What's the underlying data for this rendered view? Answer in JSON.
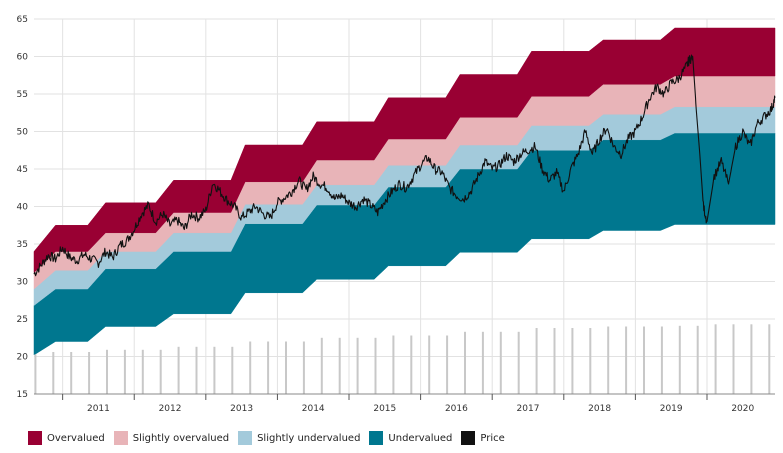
{
  "chart_data": {
    "type": "area",
    "y_range": [
      15,
      65
    ],
    "y_ticks": [
      "15",
      "20",
      "25",
      "30",
      "35",
      "40",
      "45",
      "50",
      "55",
      "60",
      "65"
    ],
    "x_range": [
      2010.6,
      2020.95
    ],
    "x_labels": [
      "2011",
      "2012",
      "2013",
      "2014",
      "2015",
      "2016",
      "2017",
      "2018",
      "2019",
      "2020"
    ],
    "grid": true,
    "legend_placement": "bottom-left",
    "colors": {
      "overvalued": "#990033",
      "slightly_overvalued": "#e8b4b8",
      "slightly_undervalued": "#a3cadb",
      "undervalued": "#00778f",
      "price": "#111111",
      "bars": "#c8c8c8",
      "grid": "#e2e2e2"
    },
    "series_names": {
      "overvalued": "Overvalued",
      "slightly_overvalued": "Slightly overvalued",
      "slightly_undervalued": "Slightly undervalued",
      "undervalued": "Undervalued",
      "price": "Price"
    },
    "valuation_steps": [
      {
        "start": 2010.6,
        "end": 2011.35,
        "b1": 22.0,
        "b2": 29.0,
        "b3": 31.5,
        "b4": 34.0,
        "b5": 37.5
      },
      {
        "start": 2011.6,
        "end": 2012.3,
        "b1": 24.0,
        "b2": 31.7,
        "b3": 34.0,
        "b4": 36.5,
        "b5": 40.5
      },
      {
        "start": 2012.55,
        "end": 2013.35,
        "b1": 25.7,
        "b2": 34.0,
        "b3": 36.5,
        "b4": 39.2,
        "b5": 43.5
      },
      {
        "start": 2013.55,
        "end": 2014.35,
        "b1": 28.5,
        "b2": 37.7,
        "b3": 40.3,
        "b4": 43.3,
        "b5": 48.2
      },
      {
        "start": 2014.55,
        "end": 2015.35,
        "b1": 30.3,
        "b2": 40.2,
        "b3": 42.9,
        "b4": 46.2,
        "b5": 51.3
      },
      {
        "start": 2015.55,
        "end": 2016.35,
        "b1": 32.1,
        "b2": 42.6,
        "b3": 45.5,
        "b4": 49.0,
        "b5": 54.5
      },
      {
        "start": 2016.55,
        "end": 2017.35,
        "b1": 33.9,
        "b2": 45.0,
        "b3": 48.2,
        "b4": 51.9,
        "b5": 57.6
      },
      {
        "start": 2017.55,
        "end": 2018.35,
        "b1": 35.7,
        "b2": 47.5,
        "b3": 50.8,
        "b4": 54.7,
        "b5": 60.7
      },
      {
        "start": 2018.55,
        "end": 2019.35,
        "b1": 36.8,
        "b2": 48.9,
        "b3": 52.3,
        "b4": 56.3,
        "b5": 62.2
      },
      {
        "start": 2019.55,
        "end": 2020.95,
        "b1": 37.6,
        "b2": 49.8,
        "b3": 53.3,
        "b4": 57.4,
        "b5": 63.8
      }
    ],
    "start_bands": {
      "x": 2010.6,
      "b1": 20.2,
      "b2": 26.8,
      "b3": 29.0,
      "b4": 31.2,
      "b5": 34.0
    },
    "bars": {
      "x": [
        2010.62,
        2010.87,
        2011.12,
        2011.37,
        2011.62,
        2011.87,
        2012.12,
        2012.37,
        2012.62,
        2012.87,
        2013.12,
        2013.37,
        2013.62,
        2013.87,
        2014.12,
        2014.37,
        2014.62,
        2014.87,
        2015.12,
        2015.37,
        2015.62,
        2015.87,
        2016.12,
        2016.37,
        2016.62,
        2016.87,
        2017.12,
        2017.37,
        2017.62,
        2017.87,
        2018.12,
        2018.37,
        2018.62,
        2018.87,
        2019.12,
        2019.37,
        2019.62,
        2019.87,
        2020.12,
        2020.37,
        2020.62,
        2020.87
      ],
      "values": [
        20.3,
        20.6,
        20.6,
        20.6,
        20.9,
        20.9,
        20.9,
        20.9,
        21.3,
        21.3,
        21.3,
        21.3,
        22.0,
        22.0,
        22.0,
        22.0,
        22.5,
        22.5,
        22.5,
        22.5,
        22.8,
        22.8,
        22.8,
        22.8,
        23.3,
        23.3,
        23.3,
        23.3,
        23.8,
        23.8,
        23.8,
        23.8,
        24.0,
        24.0,
        24.0,
        24.0,
        24.1,
        24.1,
        24.3,
        24.3,
        24.3,
        24.3
      ]
    },
    "price": {
      "x": [
        2010.6,
        2010.7,
        2010.8,
        2010.9,
        2011.0,
        2011.1,
        2011.2,
        2011.3,
        2011.4,
        2011.5,
        2011.6,
        2011.7,
        2011.8,
        2011.9,
        2012.0,
        2012.1,
        2012.2,
        2012.3,
        2012.4,
        2012.5,
        2012.6,
        2012.7,
        2012.8,
        2012.9,
        2013.0,
        2013.1,
        2013.2,
        2013.3,
        2013.4,
        2013.5,
        2013.6,
        2013.7,
        2013.8,
        2013.9,
        2014.0,
        2014.1,
        2014.2,
        2014.3,
        2014.4,
        2014.5,
        2014.6,
        2014.7,
        2014.8,
        2014.9,
        2015.0,
        2015.1,
        2015.2,
        2015.3,
        2015.4,
        2015.5,
        2015.6,
        2015.7,
        2015.8,
        2015.9,
        2016.0,
        2016.1,
        2016.2,
        2016.3,
        2016.4,
        2016.5,
        2016.6,
        2016.7,
        2016.8,
        2016.9,
        2017.0,
        2017.1,
        2017.2,
        2017.3,
        2017.4,
        2017.5,
        2017.6,
        2017.7,
        2017.8,
        2017.9,
        2018.0,
        2018.1,
        2018.2,
        2018.3,
        2018.4,
        2018.5,
        2018.6,
        2018.7,
        2018.8,
        2018.9,
        2019.0,
        2019.1,
        2019.2,
        2019.3,
        2019.4,
        2019.5,
        2019.6,
        2019.7,
        2019.75,
        2019.8,
        2019.85,
        2019.9,
        2019.95,
        2020.0,
        2020.1,
        2020.2,
        2020.3,
        2020.4,
        2020.5,
        2020.6,
        2020.7,
        2020.8,
        2020.9,
        2020.95
      ],
      "y": [
        31.0,
        32.2,
        33.5,
        33.0,
        34.5,
        33.2,
        32.8,
        33.6,
        33.0,
        32.5,
        34.0,
        33.2,
        34.8,
        35.5,
        37.0,
        39.0,
        40.2,
        38.0,
        39.0,
        37.5,
        38.2,
        37.0,
        39.0,
        38.5,
        39.5,
        43.2,
        42.0,
        40.8,
        40.0,
        38.5,
        39.3,
        40.0,
        39.0,
        38.5,
        40.5,
        41.2,
        42.0,
        43.5,
        42.2,
        44.0,
        43.0,
        42.5,
        41.0,
        41.5,
        40.5,
        40.0,
        41.0,
        40.2,
        39.2,
        40.8,
        42.0,
        43.0,
        42.5,
        44.0,
        45.5,
        46.5,
        45.0,
        44.5,
        42.5,
        41.5,
        41.0,
        42.0,
        44.0,
        46.0,
        45.0,
        45.5,
        46.8,
        46.0,
        47.0,
        47.5,
        48.0,
        45.0,
        43.5,
        44.5,
        42.0,
        45.0,
        47.0,
        50.0,
        47.0,
        49.0,
        50.5,
        48.0,
        47.0,
        49.0,
        50.0,
        52.0,
        54.5,
        56.0,
        55.0,
        56.5,
        57.0,
        58.5,
        59.5,
        60.0,
        53.0,
        47.0,
        40.0,
        38.0,
        44.0,
        46.0,
        43.0,
        48.0,
        50.0,
        48.0,
        51.0,
        52.0,
        53.0,
        54.5
      ]
    }
  },
  "legend": [
    {
      "key": "overvalued",
      "label": "Overvalued",
      "color": "#990033"
    },
    {
      "key": "slightly_overvalued",
      "label": "Slightly overvalued",
      "color": "#e8b4b8"
    },
    {
      "key": "slightly_undervalued",
      "label": "Slightly undervalued",
      "color": "#a3cadb"
    },
    {
      "key": "undervalued",
      "label": "Undervalued",
      "color": "#00778f"
    },
    {
      "key": "price",
      "label": "Price",
      "color": "#111111"
    }
  ]
}
